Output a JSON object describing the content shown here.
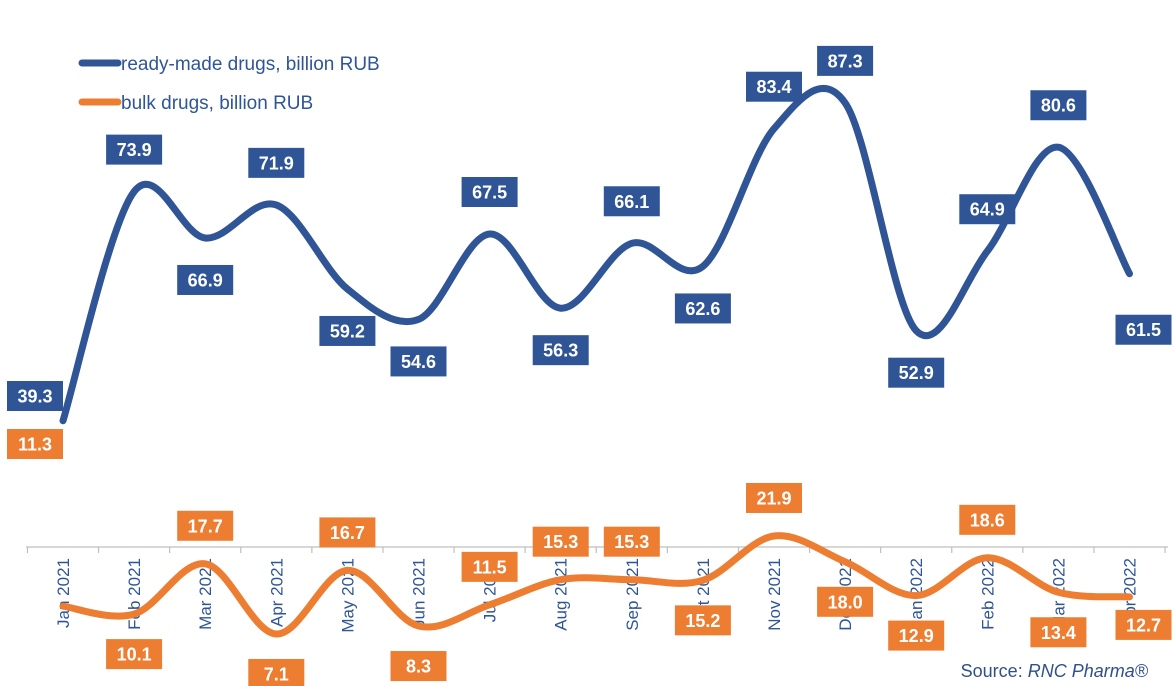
{
  "chart_data": {
    "type": "line",
    "categories": [
      "Jan 2021",
      "Feb 2021",
      "Mar 2021",
      "Apr 2021",
      "May 2021",
      "Jun 2021",
      "Jul 2021",
      "Aug 2021",
      "Sep 2021",
      "Oct 2021",
      "Nov 2021",
      "Dec 2021",
      "Jan 2022",
      "Feb 2022",
      "Mar 2022",
      "Apr 2022"
    ],
    "series": [
      {
        "name": "ready-made drugs, billion RUB",
        "color": "#2F5597",
        "values": [
          39.3,
          73.9,
          66.9,
          71.9,
          59.2,
          54.6,
          67.5,
          56.3,
          66.1,
          62.6,
          83.4,
          87.3,
          52.9,
          64.9,
          80.6,
          61.5
        ],
        "labels": [
          "39.3",
          "73.9",
          "66.9",
          "71.9",
          "59.2",
          "54.6",
          "67.5",
          "56.3",
          "66.1",
          "62.6",
          "83.4",
          "87.3",
          "52.9",
          "64.9",
          "80.6",
          "61.5"
        ]
      },
      {
        "name": "bulk drugs, billion RUB",
        "color": "#ED7D31",
        "values": [
          11.3,
          10.1,
          17.7,
          7.1,
          16.7,
          8.3,
          11.5,
          15.3,
          15.3,
          15.2,
          21.9,
          18.0,
          12.9,
          18.6,
          13.4,
          12.7
        ],
        "labels": [
          "11.3",
          "10.1",
          "17.7",
          "7.1",
          "16.7",
          "8.3",
          "11.5",
          "15.3",
          "15.3",
          "15.2",
          "21.9",
          "18.0",
          "12.9",
          "18.6",
          "13.4",
          "12.7"
        ]
      }
    ],
    "legend_position": "top-left",
    "grid": false
  },
  "source": {
    "prefix": "Source: ",
    "name": "RNC Pharma®"
  }
}
